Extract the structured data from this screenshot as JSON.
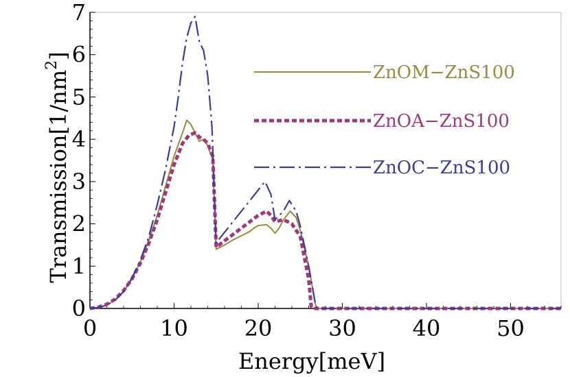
{
  "chart_data": {
    "type": "line",
    "xlabel": "Energy[meV]",
    "ylabel": "Transmission[1/nm²]",
    "ylabel_main": "Transmission[1/nm",
    "ylabel_sup": "2",
    "ylabel_tail": "]",
    "xlim": [
      0,
      56
    ],
    "ylim": [
      0,
      7
    ],
    "xticks": [
      0,
      10,
      20,
      30,
      40,
      50
    ],
    "yticks": [
      0,
      1,
      2,
      3,
      4,
      5,
      6,
      7
    ],
    "grid": false,
    "legend_position": "top-right",
    "series": [
      {
        "name": "ZnOM−ZnS100",
        "color": "#9a8a3c",
        "style": "solid",
        "points": [
          [
            0,
            0
          ],
          [
            1,
            0.02
          ],
          [
            2,
            0.08
          ],
          [
            3,
            0.2
          ],
          [
            4,
            0.4
          ],
          [
            5,
            0.7
          ],
          [
            6,
            1.1
          ],
          [
            7,
            1.6
          ],
          [
            8,
            2.2
          ],
          [
            9,
            2.9
          ],
          [
            10,
            3.6
          ],
          [
            11,
            4.15
          ],
          [
            11.5,
            4.45
          ],
          [
            12,
            4.35
          ],
          [
            12.5,
            4.15
          ],
          [
            13,
            3.95
          ],
          [
            13.5,
            4.0
          ],
          [
            14,
            3.85
          ],
          [
            14.6,
            3.5
          ],
          [
            15,
            1.4
          ],
          [
            16,
            1.5
          ],
          [
            17,
            1.62
          ],
          [
            18,
            1.72
          ],
          [
            19,
            1.82
          ],
          [
            19.5,
            1.9
          ],
          [
            20,
            1.96
          ],
          [
            21,
            1.98
          ],
          [
            21.5,
            1.9
          ],
          [
            22,
            1.78
          ],
          [
            22.5,
            1.9
          ],
          [
            23,
            2.1
          ],
          [
            23.8,
            2.3
          ],
          [
            24.5,
            2.15
          ],
          [
            25,
            1.85
          ],
          [
            26,
            1.0
          ],
          [
            26.8,
            0.1
          ],
          [
            27,
            0
          ],
          [
            56,
            0
          ]
        ]
      },
      {
        "name": "ZnOA−ZnS100",
        "color": "#a0397a",
        "style": "dotted",
        "points": [
          [
            0,
            0
          ],
          [
            1,
            0.03
          ],
          [
            2,
            0.1
          ],
          [
            3,
            0.22
          ],
          [
            4,
            0.42
          ],
          [
            5,
            0.7
          ],
          [
            6,
            1.08
          ],
          [
            7,
            1.55
          ],
          [
            8,
            2.1
          ],
          [
            9,
            2.75
          ],
          [
            10,
            3.4
          ],
          [
            11,
            3.9
          ],
          [
            11.8,
            4.1
          ],
          [
            12.5,
            4.15
          ],
          [
            13,
            4.05
          ],
          [
            13.5,
            4.0
          ],
          [
            14,
            3.9
          ],
          [
            14.6,
            3.6
          ],
          [
            15,
            1.45
          ],
          [
            16,
            1.6
          ],
          [
            17,
            1.75
          ],
          [
            18,
            1.9
          ],
          [
            19,
            2.05
          ],
          [
            20,
            2.2
          ],
          [
            21,
            2.3
          ],
          [
            21.5,
            2.2
          ],
          [
            22,
            2.05
          ],
          [
            23,
            2.1
          ],
          [
            24,
            2.0
          ],
          [
            25,
            1.7
          ],
          [
            26,
            0.7
          ],
          [
            26.3,
            0.05
          ],
          [
            26.5,
            0
          ],
          [
            56,
            0
          ]
        ]
      },
      {
        "name": "ZnOC−ZnS100",
        "color": "#3b3c9a",
        "style": "dashdot",
        "points": [
          [
            0,
            0
          ],
          [
            1,
            0.02
          ],
          [
            2,
            0.08
          ],
          [
            3,
            0.2
          ],
          [
            4,
            0.4
          ],
          [
            5,
            0.72
          ],
          [
            6,
            1.15
          ],
          [
            7,
            1.7
          ],
          [
            8,
            2.45
          ],
          [
            9,
            3.3
          ],
          [
            10,
            4.3
          ],
          [
            10.5,
            5.0
          ],
          [
            11,
            5.8
          ],
          [
            11.5,
            6.4
          ],
          [
            12,
            6.75
          ],
          [
            12.5,
            6.9
          ],
          [
            13,
            6.3
          ],
          [
            13.5,
            6.1
          ],
          [
            14,
            5.5
          ],
          [
            14.5,
            4.3
          ],
          [
            15,
            1.55
          ],
          [
            16,
            1.8
          ],
          [
            17,
            2.05
          ],
          [
            18,
            2.3
          ],
          [
            19,
            2.55
          ],
          [
            20,
            2.8
          ],
          [
            20.8,
            3.0
          ],
          [
            21.5,
            2.7
          ],
          [
            22,
            2.1
          ],
          [
            23,
            2.3
          ],
          [
            23.7,
            2.55
          ],
          [
            24.5,
            2.3
          ],
          [
            25,
            1.95
          ],
          [
            26,
            1.0
          ],
          [
            26.8,
            0.1
          ],
          [
            27,
            0
          ],
          [
            56,
            0
          ]
        ]
      }
    ]
  }
}
